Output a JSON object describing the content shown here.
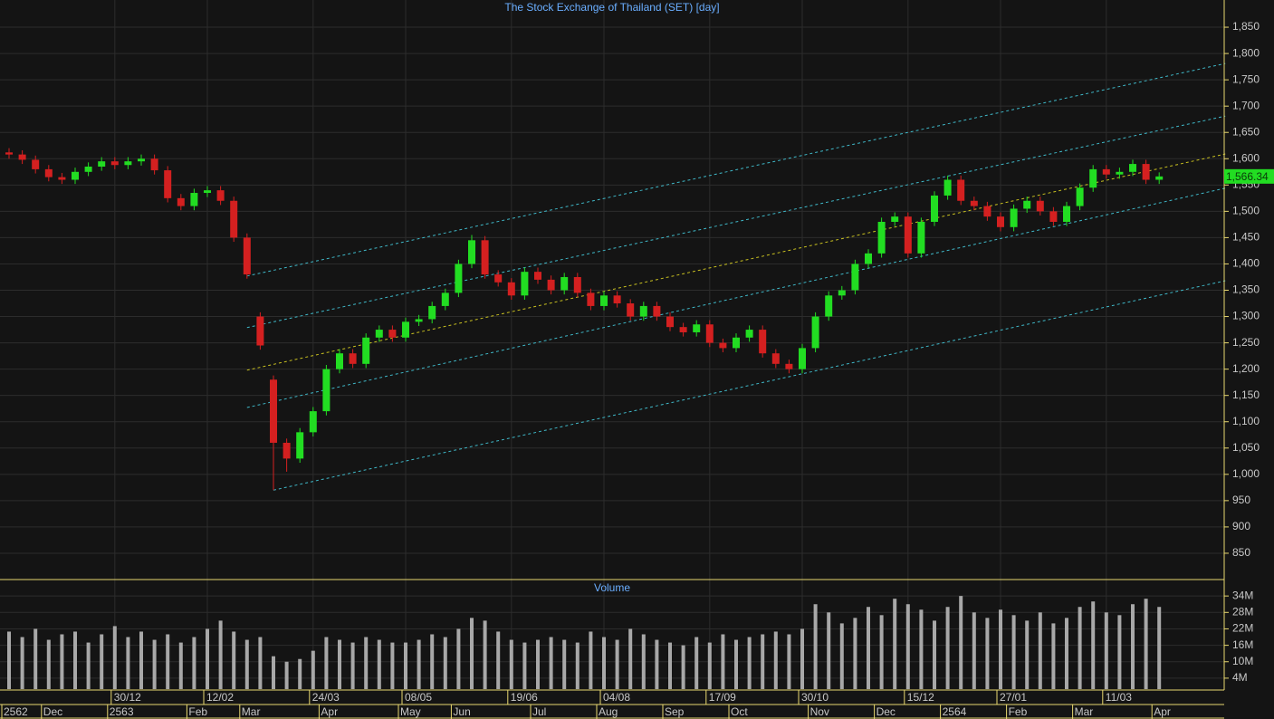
{
  "chart_data": [
    {
      "type": "candlestick",
      "title": "The Stock Exchange of Thailand (SET) [day]",
      "categories": [
        null,
        null,
        null,
        null,
        null,
        null,
        null,
        null,
        "30/12",
        null,
        null,
        null,
        null,
        null,
        null,
        "12/02",
        null,
        null,
        null,
        null,
        null,
        null,
        null,
        "24/03",
        null,
        null,
        null,
        null,
        null,
        null,
        "08/05",
        null,
        null,
        null,
        null,
        null,
        null,
        null,
        "19/06",
        null,
        null,
        null,
        null,
        null,
        null,
        "04/08",
        null,
        null,
        null,
        null,
        null,
        null,
        null,
        "17/09",
        null,
        null,
        null,
        null,
        null,
        null,
        "30/10",
        null,
        null,
        null,
        null,
        null,
        null,
        null,
        "15/12",
        null,
        null,
        null,
        null,
        null,
        null,
        "27/01",
        null,
        null,
        null,
        null,
        null,
        null,
        null,
        "11/03",
        null,
        null,
        null,
        null
      ],
      "periods": [
        "2562",
        null,
        null,
        "Dec",
        null,
        null,
        null,
        null,
        "2563",
        null,
        null,
        null,
        null,
        null,
        "Feb",
        null,
        null,
        null,
        "Mar",
        null,
        null,
        null,
        null,
        null,
        "Apr",
        null,
        null,
        null,
        null,
        null,
        "May",
        null,
        null,
        null,
        "Jun",
        null,
        null,
        null,
        null,
        null,
        "Jul",
        null,
        null,
        null,
        null,
        "Aug",
        null,
        null,
        null,
        null,
        "Sep",
        null,
        null,
        null,
        null,
        "Oct",
        null,
        null,
        null,
        null,
        null,
        "Nov",
        null,
        null,
        null,
        null,
        "Dec",
        null,
        null,
        null,
        null,
        "2564",
        null,
        null,
        null,
        null,
        "Feb",
        null,
        null,
        null,
        null,
        "Mar",
        null,
        null,
        null,
        null,
        null,
        "Apr"
      ],
      "open": [
        1612,
        1608,
        1598,
        1580,
        1565,
        1560,
        1575,
        1585,
        1595,
        1588,
        1595,
        1600,
        1578,
        1525,
        1510,
        1535,
        1540,
        1520,
        1450,
        1300,
        1180,
        1060,
        1030,
        1080,
        1120,
        1200,
        1230,
        1210,
        1260,
        1275,
        1260,
        1290,
        1295,
        1320,
        1345,
        1400,
        1445,
        1380,
        1365,
        1340,
        1385,
        1370,
        1350,
        1375,
        1345,
        1320,
        1340,
        1325,
        1300,
        1320,
        1300,
        1280,
        1270,
        1285,
        1250,
        1240,
        1260,
        1275,
        1230,
        1210,
        1200,
        1240,
        1300,
        1340,
        1350,
        1400,
        1420,
        1480,
        1490,
        1420,
        1480,
        1530,
        1560,
        1520,
        1510,
        1490,
        1470,
        1505,
        1520,
        1500,
        1480,
        1510,
        1545,
        1580,
        1570,
        1575,
        1590,
        1560
      ],
      "high": [
        1620,
        1616,
        1606,
        1588,
        1573,
        1583,
        1593,
        1603,
        1603,
        1603,
        1608,
        1608,
        1586,
        1533,
        1543,
        1548,
        1548,
        1528,
        1458,
        1308,
        1188,
        1068,
        1088,
        1128,
        1208,
        1238,
        1238,
        1268,
        1283,
        1283,
        1298,
        1303,
        1328,
        1353,
        1408,
        1455,
        1453,
        1388,
        1373,
        1393,
        1393,
        1378,
        1383,
        1383,
        1353,
        1348,
        1348,
        1333,
        1328,
        1328,
        1308,
        1288,
        1293,
        1293,
        1258,
        1268,
        1283,
        1283,
        1238,
        1218,
        1248,
        1308,
        1348,
        1358,
        1408,
        1428,
        1488,
        1498,
        1498,
        1488,
        1538,
        1568,
        1568,
        1528,
        1518,
        1498,
        1513,
        1528,
        1528,
        1508,
        1518,
        1553,
        1588,
        1588,
        1583,
        1598,
        1598,
        1574
      ],
      "low": [
        1600,
        1590,
        1572,
        1557,
        1552,
        1552,
        1567,
        1577,
        1580,
        1580,
        1587,
        1570,
        1517,
        1502,
        1502,
        1527,
        1512,
        1442,
        1372,
        1237,
        970,
        1005,
        1022,
        1072,
        1112,
        1192,
        1202,
        1202,
        1252,
        1252,
        1252,
        1282,
        1287,
        1312,
        1337,
        1392,
        1372,
        1357,
        1332,
        1332,
        1362,
        1342,
        1342,
        1337,
        1312,
        1312,
        1317,
        1292,
        1292,
        1292,
        1272,
        1262,
        1262,
        1242,
        1232,
        1232,
        1252,
        1222,
        1202,
        1192,
        1192,
        1232,
        1292,
        1332,
        1342,
        1392,
        1412,
        1472,
        1412,
        1412,
        1472,
        1522,
        1512,
        1502,
        1482,
        1462,
        1462,
        1497,
        1492,
        1472,
        1472,
        1502,
        1537,
        1562,
        1562,
        1567,
        1552,
        1552
      ],
      "close": [
        1608,
        1598,
        1580,
        1565,
        1560,
        1575,
        1585,
        1595,
        1588,
        1595,
        1600,
        1578,
        1525,
        1510,
        1535,
        1540,
        1520,
        1450,
        1380,
        1245,
        1060,
        1030,
        1080,
        1120,
        1200,
        1230,
        1210,
        1260,
        1275,
        1260,
        1290,
        1295,
        1320,
        1345,
        1400,
        1445,
        1380,
        1365,
        1340,
        1385,
        1370,
        1350,
        1375,
        1345,
        1320,
        1340,
        1325,
        1300,
        1320,
        1300,
        1280,
        1270,
        1285,
        1250,
        1240,
        1260,
        1275,
        1230,
        1210,
        1200,
        1240,
        1300,
        1340,
        1350,
        1400,
        1420,
        1480,
        1490,
        1420,
        1480,
        1530,
        1560,
        1520,
        1510,
        1490,
        1470,
        1505,
        1520,
        1500,
        1480,
        1510,
        1545,
        1580,
        1570,
        1575,
        1590,
        1560,
        1566.34
      ],
      "last_close_label": "1,566.34",
      "up_color": "#22dd22",
      "down_color": "#d42020",
      "ylim": [
        800,
        1900
      ],
      "yticks": [
        850,
        900,
        950,
        {
          "value": 1000,
          "label": "1,000"
        },
        {
          "value": 1050,
          "label": "1,050"
        },
        {
          "value": 1100,
          "label": "1,100"
        },
        {
          "value": 1150,
          "label": "1,150"
        },
        {
          "value": 1200,
          "label": "1,200"
        },
        {
          "value": 1250,
          "label": "1,250"
        },
        {
          "value": 1300,
          "label": "1,300"
        },
        {
          "value": 1350,
          "label": "1,350"
        },
        {
          "value": 1400,
          "label": "1,400"
        },
        {
          "value": 1450,
          "label": "1,450"
        },
        {
          "value": 1500,
          "label": "1,500"
        },
        {
          "value": 1550,
          "label": "1,550"
        },
        {
          "value": 1600,
          "label": "1,600"
        },
        {
          "value": 1650,
          "label": "1,650"
        },
        {
          "value": 1700,
          "label": "1,700"
        },
        {
          "value": 1750,
          "label": "1,750"
        },
        {
          "value": 1800,
          "label": "1,800"
        },
        {
          "value": 1850,
          "label": "1,850"
        }
      ],
      "grid": true,
      "trendlines": [
        {
          "start": [
            18,
            1377
          ],
          "end": [
            92,
            1781
          ],
          "color": "#3fb8c8"
        },
        {
          "start": [
            18,
            1279
          ],
          "end": [
            92,
            1681
          ],
          "color": "#3fb8c8"
        },
        {
          "start": [
            18,
            1198
          ],
          "end": [
            92,
            1609
          ],
          "color": "#c8c020"
        },
        {
          "start": [
            18,
            1127
          ],
          "end": [
            92,
            1544
          ],
          "color": "#3fb8c8"
        },
        {
          "start": [
            20,
            970
          ],
          "end": [
            92,
            1368
          ],
          "color": "#3fb8c8"
        }
      ]
    },
    {
      "type": "bar",
      "title": "Volume",
      "color": "#a8a8a8",
      "values": [
        21,
        19,
        22,
        18,
        20,
        21,
        17,
        20,
        23,
        19,
        21,
        18,
        20,
        17,
        19,
        22,
        25,
        21,
        18,
        19,
        12,
        10,
        11,
        14,
        19,
        18,
        17,
        19,
        18,
        17,
        17,
        18,
        20,
        19,
        22,
        26,
        25,
        21,
        18,
        17,
        18,
        19,
        18,
        17,
        21,
        19,
        18,
        22,
        20,
        18,
        17,
        16,
        19,
        17,
        20,
        18,
        19,
        20,
        21,
        20,
        22,
        31,
        28,
        24,
        26,
        30,
        27,
        33,
        31,
        29,
        25,
        30,
        34,
        28,
        26,
        29,
        27,
        25,
        28,
        24,
        26,
        30,
        32,
        28,
        27,
        31,
        33,
        30
      ],
      "ylim": [
        0,
        40
      ],
      "yticks": [
        {
          "value": 4,
          "label": "4M"
        },
        {
          "value": 10,
          "label": "10M"
        },
        {
          "value": 16,
          "label": "16M"
        },
        {
          "value": 22,
          "label": "22M"
        },
        {
          "value": 28,
          "label": "28M"
        },
        {
          "value": 34,
          "label": "34M"
        }
      ]
    }
  ]
}
